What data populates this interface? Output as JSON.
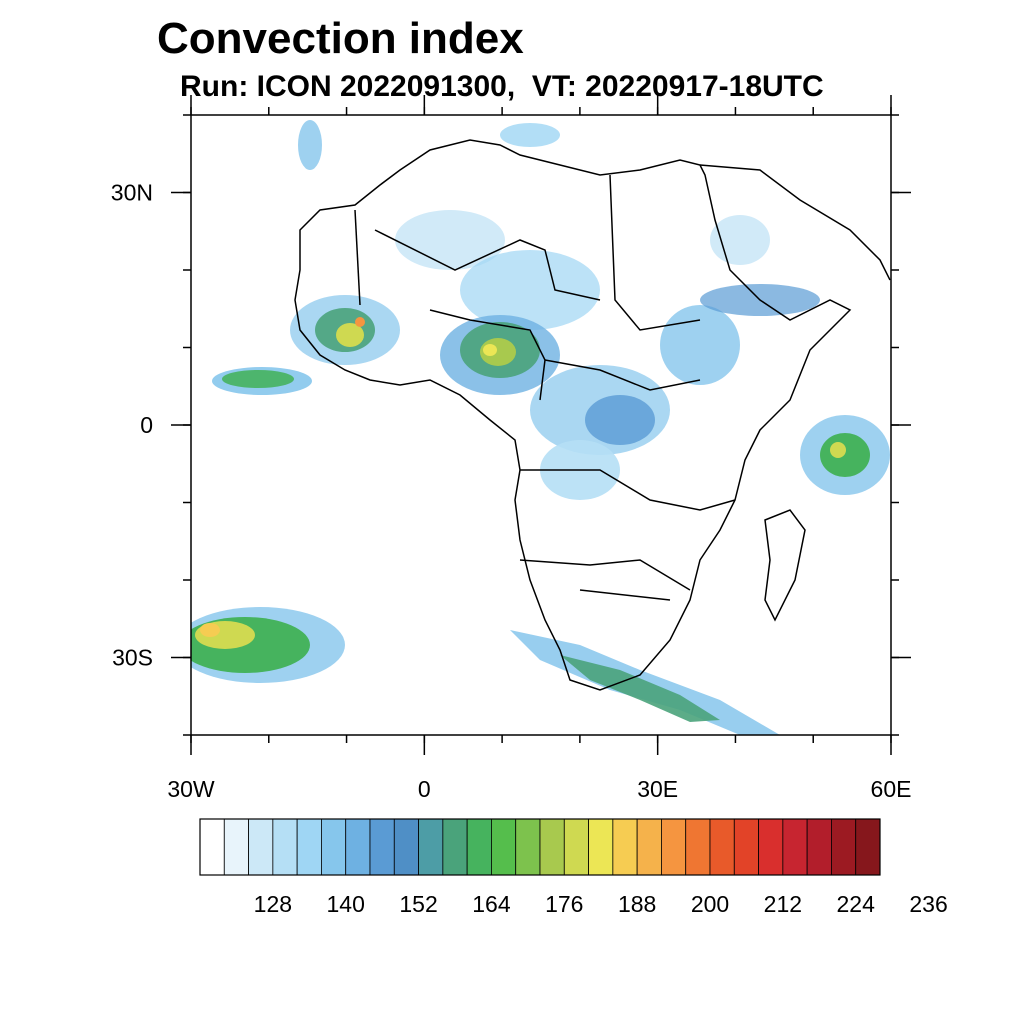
{
  "title": "Convection index",
  "subtitle": "Run: ICON 2022091300,  VT: 20220917-18UTC",
  "map": {
    "lon_range": [
      -30,
      60
    ],
    "lat_range": [
      -40,
      40
    ],
    "lat_ticks": [
      {
        "value": 30,
        "label": "30N"
      },
      {
        "value": 0,
        "label": "0"
      },
      {
        "value": -30,
        "label": "30S"
      }
    ],
    "lon_ticks": [
      {
        "value": -30,
        "label": "30W"
      },
      {
        "value": 0,
        "label": "0"
      },
      {
        "value": 30,
        "label": "30E"
      },
      {
        "value": 60,
        "label": "60E"
      }
    ],
    "minor_lon_step": 10,
    "minor_lat_step": 10
  },
  "colorbar": {
    "colors": [
      "#ffffff",
      "#e8f4fb",
      "#cce8f7",
      "#b5dff5",
      "#9fd6f4",
      "#86c6ec",
      "#6eb1e2",
      "#5a9bd4",
      "#4f8fc6",
      "#4d9da6",
      "#4aa37b",
      "#46b35e",
      "#55be4c",
      "#7dc24d",
      "#a8c94e",
      "#cfd951",
      "#ece655",
      "#f6cc52",
      "#f5b24b",
      "#f59540",
      "#ef7632",
      "#e85a2a",
      "#e24328",
      "#d92f2d",
      "#c72530",
      "#b21e2b",
      "#9c1a22",
      "#86171c"
    ],
    "labels": [
      "128",
      "140",
      "152",
      "164",
      "176",
      "188",
      "200",
      "212",
      "224",
      "236"
    ]
  }
}
